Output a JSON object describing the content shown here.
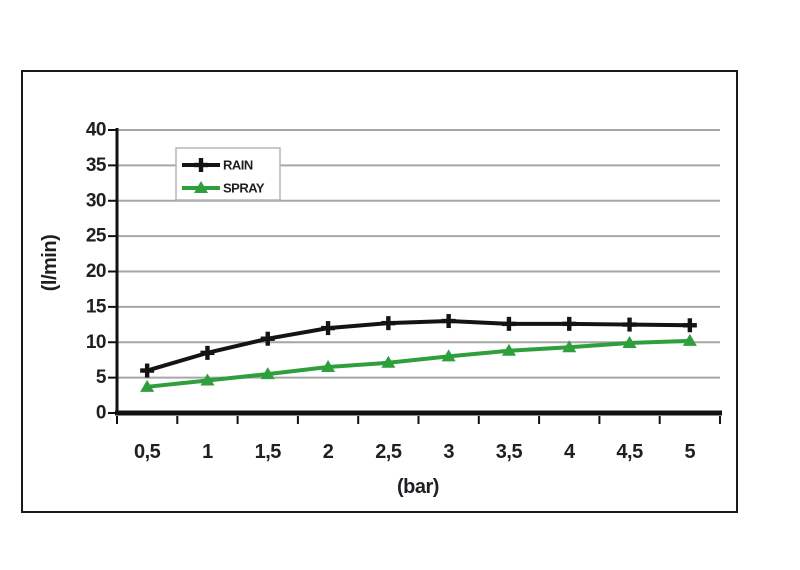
{
  "chart_data": {
    "type": "line",
    "title": "",
    "xlabel": "(bar)",
    "ylabel": "(l/min)",
    "x": [
      0.5,
      1,
      1.5,
      2,
      2.5,
      3,
      3.5,
      4,
      4.5,
      5
    ],
    "x_tick_labels": [
      "0,5",
      "1",
      "1,5",
      "2",
      "2,5",
      "3",
      "3,5",
      "4",
      "4,5",
      "5"
    ],
    "y_tick_labels": [
      "0",
      "5",
      "10",
      "15",
      "20",
      "25",
      "30",
      "35",
      "40"
    ],
    "ylim": [
      0,
      40
    ],
    "grid": "horizontal",
    "legend_position": "top-left-inside",
    "series": [
      {
        "name": "RAIN",
        "color": "#141414",
        "marker": "plus",
        "values": [
          6,
          8.5,
          10.5,
          12,
          12.7,
          13,
          12.6,
          12.6,
          12.5,
          12.4
        ]
      },
      {
        "name": "SPRAY",
        "color": "#2f9e3d",
        "marker": "triangle-up",
        "values": [
          3.7,
          4.6,
          5.5,
          6.5,
          7.1,
          8,
          8.8,
          9.3,
          9.9,
          10.2
        ]
      }
    ]
  },
  "colors": {
    "background": "#ffffff",
    "text": "#1f1f24",
    "grid": "#a6a6a6",
    "axis": "#111111",
    "frame": "#1a1a1a",
    "legend_border": "#b5b5b5"
  }
}
